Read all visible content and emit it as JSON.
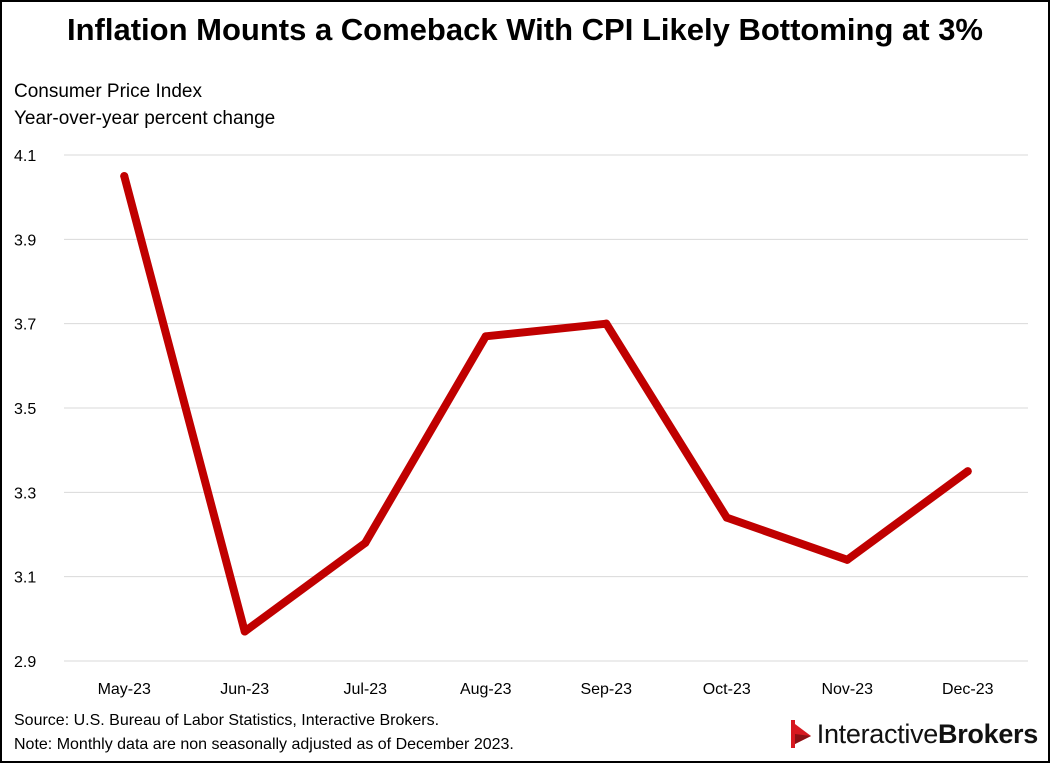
{
  "title": "Inflation Mounts a Comeback With CPI Likely Bottoming at 3%",
  "ylabel_lines": [
    "Consumer Price Index",
    "Year-over-year percent change"
  ],
  "source": "Source: U.S. Bureau of Labor Statistics, Interactive Brokers.",
  "note": "Note: Monthly data are non seasonally adjusted as of December 2023.",
  "logo": {
    "part1": "Interactive",
    "part2": "Brokers",
    "mark_colors": [
      "#d71920",
      "#8b1014"
    ],
    "icon": "ib-flag-logo"
  },
  "colors": {
    "line": "#c00000",
    "grid": "#d9d9d9"
  },
  "chart_data": {
    "type": "line",
    "categories": [
      "May-23",
      "Jun-23",
      "Jul-23",
      "Aug-23",
      "Sep-23",
      "Oct-23",
      "Nov-23",
      "Dec-23"
    ],
    "series": [
      {
        "values": [
          4.05,
          2.97,
          3.18,
          3.67,
          3.7,
          3.24,
          3.14,
          3.35
        ]
      }
    ],
    "yticks": [
      "2.9",
      "3.1",
      "3.3",
      "3.5",
      "3.7",
      "3.9",
      "4.1"
    ],
    "ylim": [
      2.9,
      4.1
    ],
    "grid": true,
    "legend": "none"
  }
}
